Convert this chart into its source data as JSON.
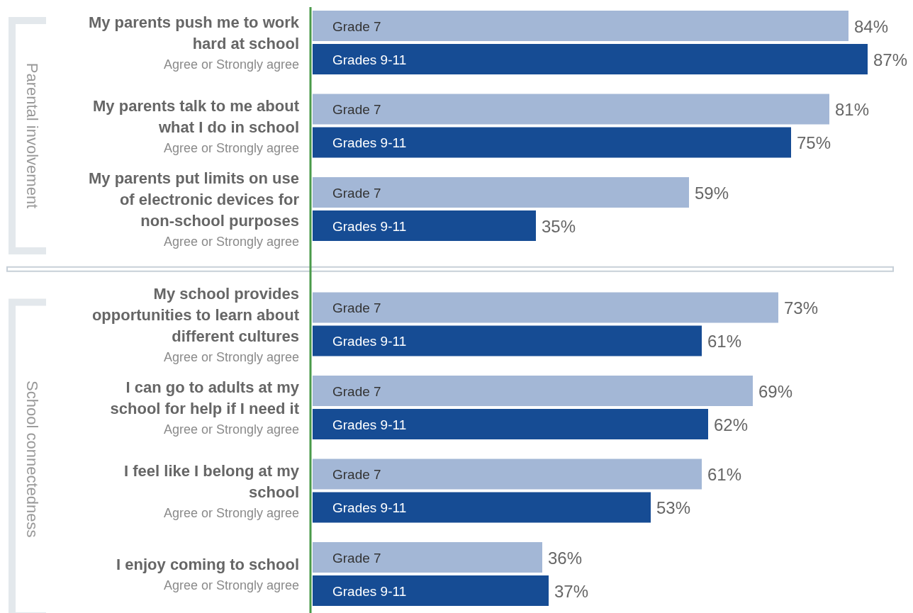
{
  "chart_data": {
    "type": "bar",
    "orientation": "horizontal",
    "categories": [
      "My parents push me to work hard at school",
      "My parents talk to me about what I do in school",
      "My parents put limits on use of electronic devices for non-school purposes",
      "My school provides opportunities to learn about different cultures",
      "I can go to adults at my school for help if I need it",
      "I feel like I belong at my school",
      "I enjoy coming to school"
    ],
    "series": [
      {
        "name": "Grade 7",
        "color": "#a3b7d6",
        "values": [
          84,
          81,
          59,
          73,
          69,
          61,
          36
        ],
        "value_labels": [
          "84%",
          "81%",
          "59%",
          "73%",
          "69%",
          "61%",
          "36%"
        ]
      },
      {
        "name": "Grades 9-11",
        "color": "#164c94",
        "values": [
          87,
          75,
          35,
          61,
          62,
          53,
          37
        ],
        "value_labels": [
          "87%",
          "75%",
          "35%",
          "61%",
          "62%",
          "53%",
          "37%"
        ]
      }
    ],
    "annotations": [
      "Parental involvement",
      "School connectedness",
      "Agree or Strongly agree",
      "Agree or Strongly agree",
      "Agree or Strongly agree",
      "Agree or Strongly agree",
      "Agree or Strongly agree",
      "Agree or Strongly agree",
      "Agree or Strongly agree"
    ]
  }
}
